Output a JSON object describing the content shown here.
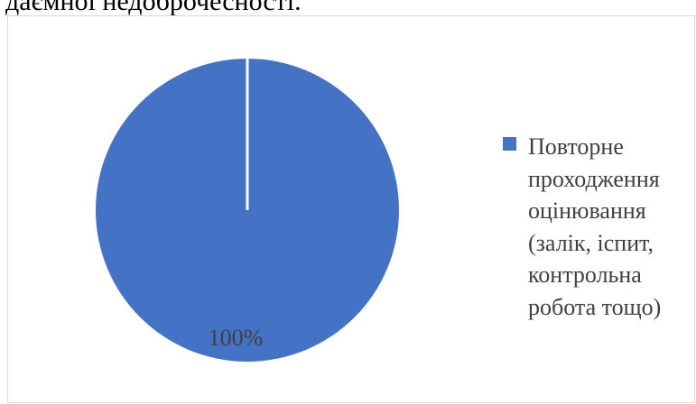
{
  "page": {
    "cut_text": "даємної недоброчесності."
  },
  "chart_data": {
    "type": "pie",
    "categories": [
      "Повторне\nпроходження\nоцінювання\n(залік, іспит,\nконтрольна\nробота тощо)"
    ],
    "values": [
      100
    ],
    "data_labels": [
      "100%"
    ],
    "colors": [
      "#4472c4"
    ],
    "legend_placement": "right",
    "title": ""
  }
}
